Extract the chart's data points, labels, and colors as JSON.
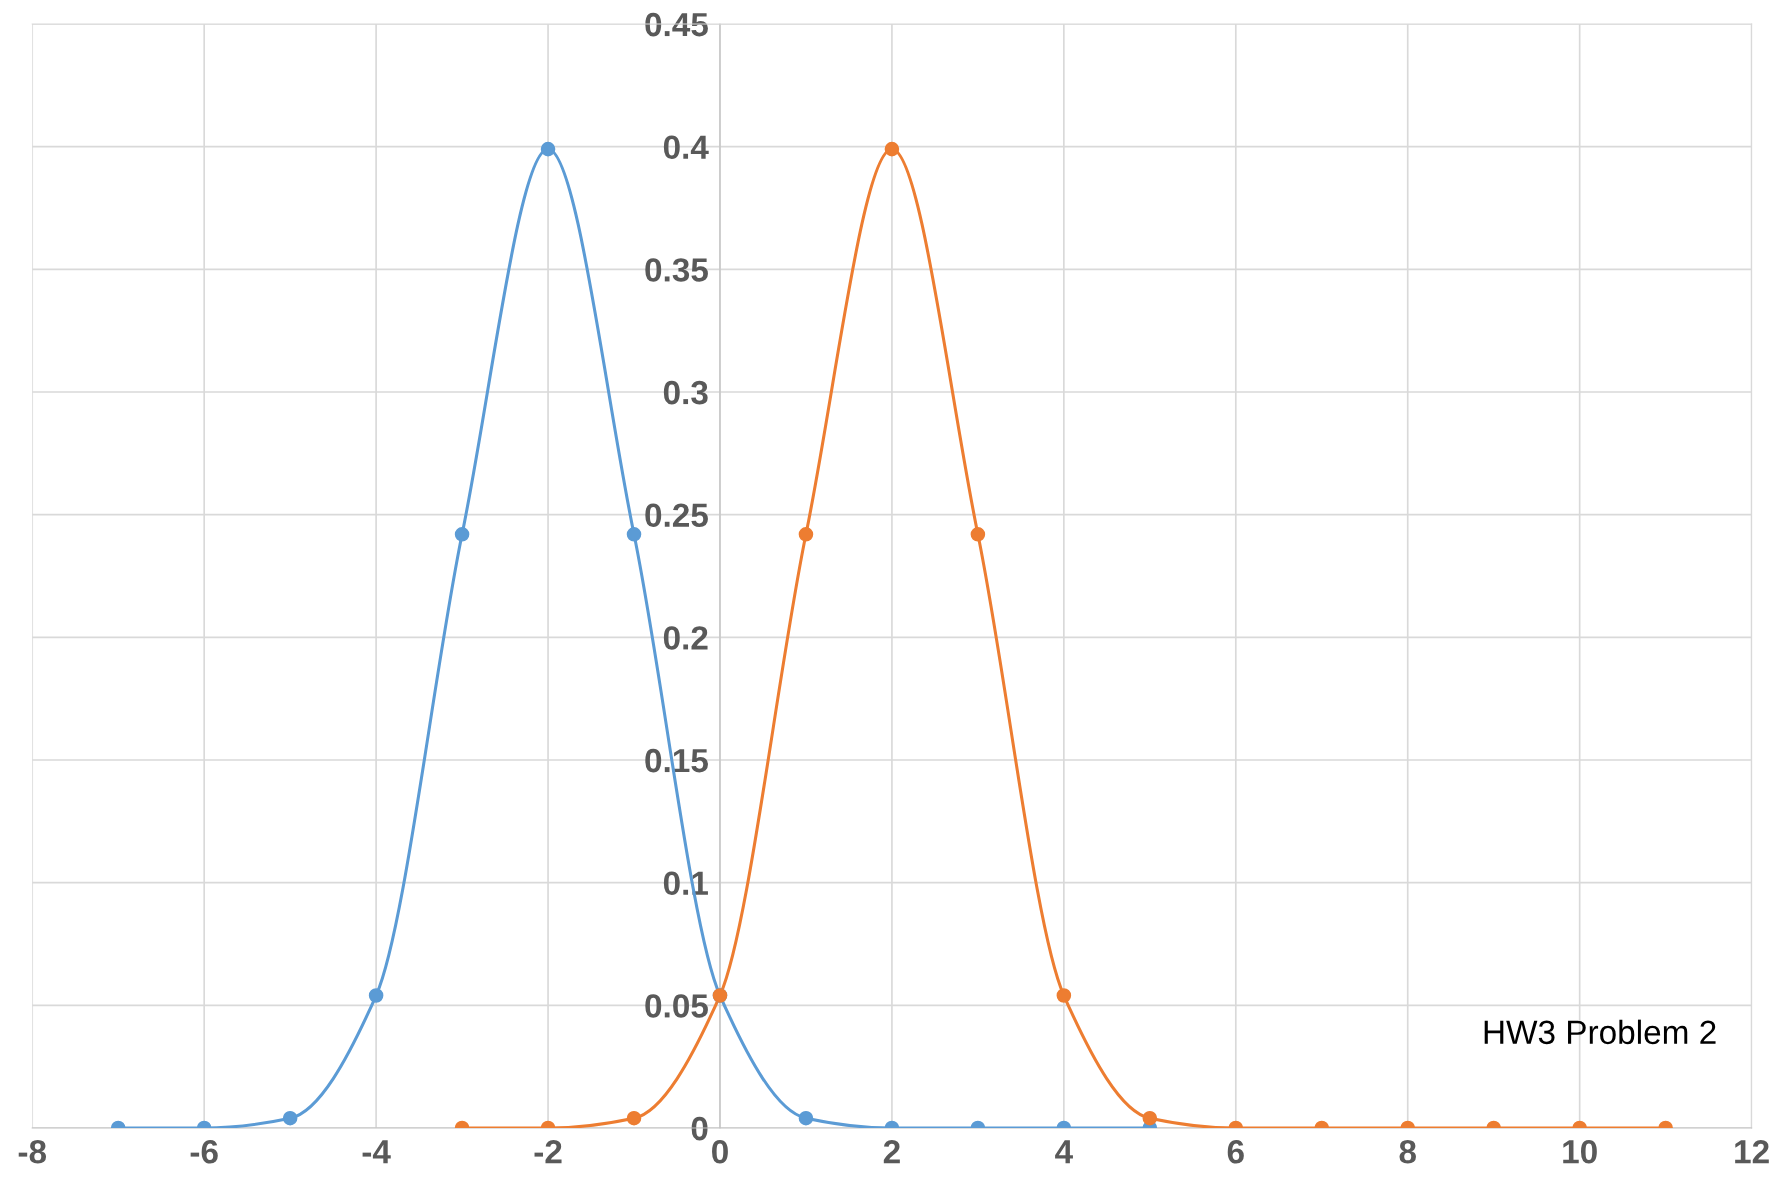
{
  "chart_data": {
    "type": "line",
    "series": [
      {
        "color": "#5b9bd5",
        "x": [
          -7,
          -6,
          -5,
          -4,
          -3,
          -2,
          -1,
          0,
          1,
          2,
          3,
          4,
          5
        ],
        "values": [
          0,
          0,
          0.004,
          0.054,
          0.242,
          0.399,
          0.242,
          0.054,
          0.004,
          0,
          0,
          0,
          0
        ]
      },
      {
        "color": "#ed7d31",
        "x": [
          -3,
          -2,
          -1,
          0,
          1,
          2,
          3,
          4,
          5,
          6,
          7,
          8,
          9,
          10,
          11
        ],
        "values": [
          0,
          0,
          0.004,
          0.054,
          0.242,
          0.399,
          0.242,
          0.054,
          0.004,
          0,
          0,
          0,
          0,
          0,
          0
        ]
      }
    ],
    "xlim": [
      -8,
      12
    ],
    "xticks": [
      -8,
      -6,
      -4,
      -2,
      0,
      2,
      4,
      6,
      8,
      10,
      12
    ],
    "ylim": [
      0,
      0.45
    ],
    "yticks": [
      0,
      0.05,
      0.1,
      0.15,
      0.2,
      0.25,
      0.3,
      0.35,
      0.4,
      0.45
    ],
    "grid": true,
    "marker": "circle",
    "line_style": "solid",
    "annotations": [
      "HW3 Problem 2"
    ]
  }
}
